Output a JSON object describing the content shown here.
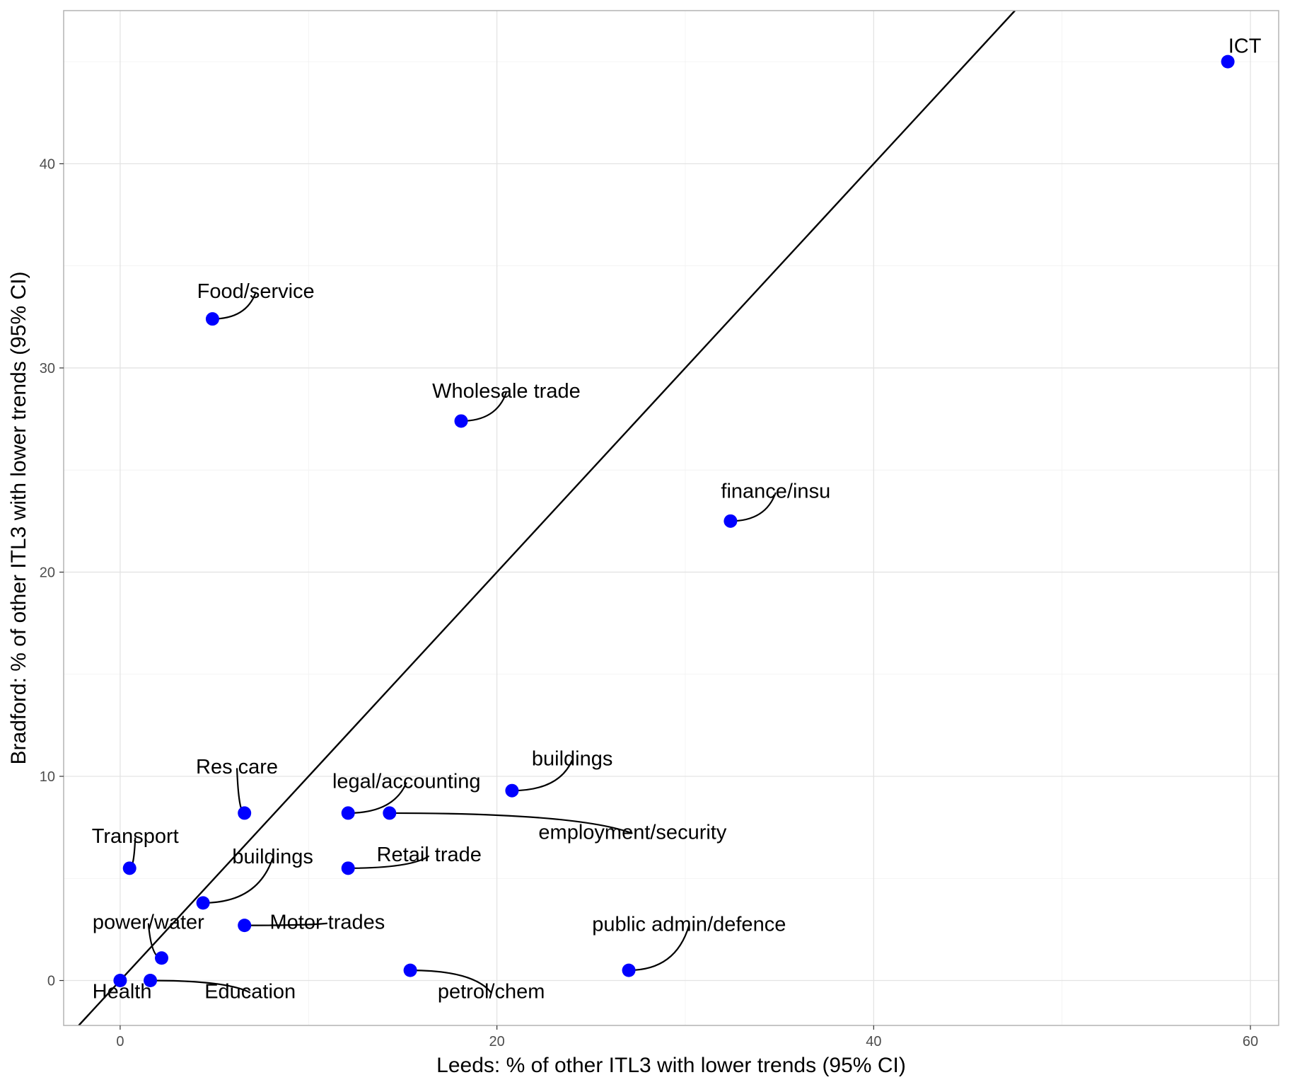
{
  "chart_data": {
    "type": "scatter",
    "xlabel": "Leeds: % of other ITL3 with lower trends (95% CI)",
    "ylabel": "Bradford: % of other ITL3 with lower trends (95% CI)",
    "xlim": [
      -3,
      61.5
    ],
    "ylim": [
      -2.2,
      47.5
    ],
    "x_ticks": [
      0,
      20,
      40,
      60
    ],
    "y_ticks": [
      0,
      10,
      20,
      30,
      40
    ],
    "x_tick_labels": [
      "0",
      "20",
      "40",
      "60"
    ],
    "y_tick_labels": [
      "0",
      "10",
      "20",
      "30",
      "40"
    ],
    "grid": true,
    "point_color": "#0000ff",
    "reference_line": {
      "type": "identity",
      "slope": 1,
      "intercept": 0
    },
    "points": [
      {
        "label": "ICT",
        "x": 58.8,
        "y": 45.0,
        "label_x": 59.7,
        "label_y": 45.7
      },
      {
        "label": "Food/service",
        "x": 4.9,
        "y": 32.4,
        "label_x": 7.2,
        "label_y": 33.7
      },
      {
        "label": "Wholesale trade",
        "x": 18.1,
        "y": 27.4,
        "label_x": 20.5,
        "label_y": 28.8
      },
      {
        "label": "finance/insu",
        "x": 32.4,
        "y": 22.5,
        "label_x": 34.8,
        "label_y": 23.9
      },
      {
        "label": "buildings",
        "x": 20.8,
        "y": 9.3,
        "label_x": 24.0,
        "label_y": 10.8
      },
      {
        "label": "legal/accounting",
        "x": 12.1,
        "y": 8.2,
        "label_x": 15.2,
        "label_y": 9.7
      },
      {
        "label": "employment/security",
        "x": 14.3,
        "y": 8.2,
        "label_x": 27.2,
        "label_y": 7.2
      },
      {
        "label": "Res care",
        "x": 6.6,
        "y": 8.2,
        "label_x": 6.2,
        "label_y": 10.4
      },
      {
        "label": "Retail trade",
        "x": 12.1,
        "y": 5.5,
        "label_x": 16.4,
        "label_y": 6.1
      },
      {
        "label": "Transport",
        "x": 0.5,
        "y": 5.5,
        "label_x": 0.8,
        "label_y": 7.0
      },
      {
        "label": "buildings",
        "x": 4.4,
        "y": 3.8,
        "label_x": 8.1,
        "label_y": 6.0
      },
      {
        "label": "Motor trades",
        "x": 6.6,
        "y": 2.7,
        "label_x": 11.0,
        "label_y": 2.8
      },
      {
        "label": "power/water",
        "x": 2.2,
        "y": 1.1,
        "label_x": 1.5,
        "label_y": 2.8
      },
      {
        "label": "public admin/defence",
        "x": 27.0,
        "y": 0.5,
        "label_x": 30.2,
        "label_y": 2.7
      },
      {
        "label": "petrol/chem",
        "x": 15.4,
        "y": 0.5,
        "label_x": 19.7,
        "label_y": -0.6
      },
      {
        "label": "Health",
        "x": 0.0,
        "y": 0.0,
        "label_x": 0.1,
        "label_y": -0.6
      },
      {
        "label": "Education",
        "x": 1.6,
        "y": 0.0,
        "label_x": 6.9,
        "label_y": -0.6
      }
    ]
  }
}
